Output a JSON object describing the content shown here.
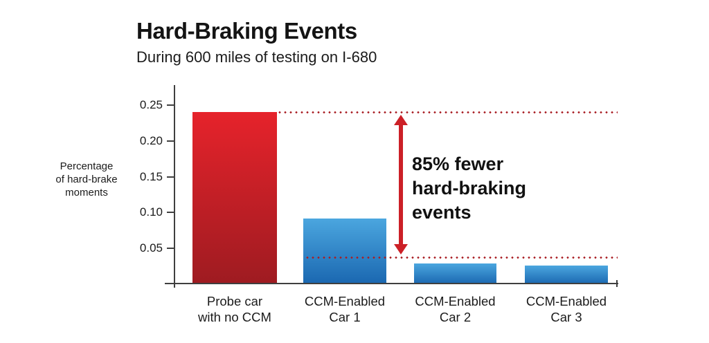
{
  "header": {
    "title": "Hard-Braking Events",
    "subtitle": "During 600 miles of testing on I-680"
  },
  "chart_data": {
    "type": "bar",
    "title": "Hard-Braking Events",
    "subtitle": "During 600 miles of testing on I-680",
    "ylabel": "Percentage\nof hard-brake\nmoments",
    "xlabel": "",
    "categories": [
      "Probe car\nwith no CCM",
      "CCM-Enabled\nCar 1",
      "CCM-Enabled\nCar 2",
      "CCM-Enabled\nCar 3"
    ],
    "values": [
      0.24,
      0.092,
      0.029,
      0.026
    ],
    "bar_colors": [
      {
        "top": "#e6232b",
        "bottom": "#9e1b21"
      },
      {
        "top": "#4ba6df",
        "bottom": "#1a67b0"
      },
      {
        "top": "#4ba6df",
        "bottom": "#1a67b0"
      },
      {
        "top": "#4ba6df",
        "bottom": "#1a67b0"
      }
    ],
    "yticks": [
      {
        "value": 0.05,
        "label": "0.05"
      },
      {
        "value": 0.1,
        "label": "0.10"
      },
      {
        "value": 0.15,
        "label": "0.15"
      },
      {
        "value": 0.2,
        "label": "0.20"
      },
      {
        "value": 0.25,
        "label": "0.25"
      }
    ],
    "ylim": [
      0,
      0.278
    ],
    "grid": false,
    "legend": false,
    "axis_color": "#3f3f3f",
    "annotations": {
      "top_dotted_value": 0.24,
      "bottom_dotted_value": 0.037,
      "dotted_color": "#a91d23",
      "arrow_color": "#cc2027",
      "text": "85% fewer\nhard-braking\nevents"
    }
  }
}
